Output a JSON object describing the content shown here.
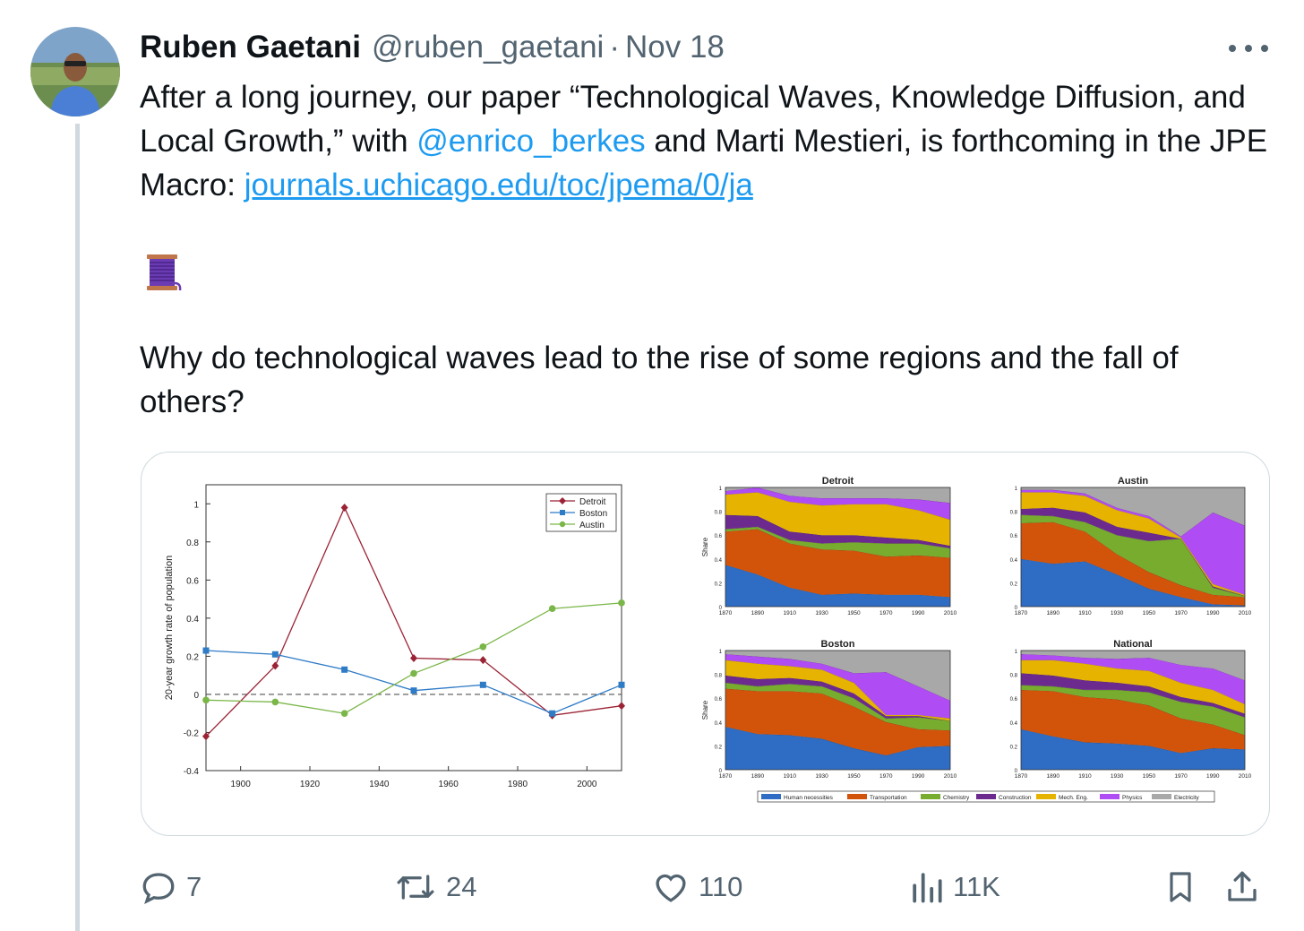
{
  "tweet": {
    "author_name": "Ruben Gaetani",
    "handle": "@ruben_gaetani",
    "separator": "·",
    "date": "Nov 18",
    "text_part1": "After a long journey, our paper “Technological Waves, Knowledge Diffusion, and Local Growth,” with ",
    "mention": "@enrico_berkes",
    "text_part2": " and Marti Mestieri, is forthcoming in the JPE Macro: ",
    "link": "journals.uchicago.edu/toc/jpema/0/ja",
    "emoji": "thread-spool",
    "text_para2": "Why do technological waves lead to the rise of some regions and the fall of others?"
  },
  "actions": {
    "replies": "7",
    "retweets": "24",
    "likes": "110",
    "views": "11K"
  },
  "icons": [
    "more-icon",
    "reply-icon",
    "retweet-icon",
    "like-icon",
    "views-icon",
    "bookmark-icon",
    "share-icon"
  ],
  "colors": {
    "text": "#0f1419",
    "secondary": "#536471",
    "link": "#1d9bf0",
    "detroit": "#9b2335",
    "boston": "#2e7bc6",
    "austin": "#7ab648"
  },
  "chart_data": [
    {
      "type": "line",
      "ylabel": "20-year growth rate of population",
      "xlabel": "",
      "x": [
        1890,
        1910,
        1930,
        1950,
        1970,
        1990,
        2010
      ],
      "xticks": [
        1900,
        1920,
        1940,
        1960,
        1980,
        2000
      ],
      "xlim": [
        1890,
        2010
      ],
      "ylim": [
        -0.4,
        1.1
      ],
      "yticks": [
        -0.4,
        -0.2,
        0,
        0.2,
        0.4,
        0.6,
        0.8,
        1
      ],
      "series": [
        {
          "name": "Detroit",
          "color": "#9b2335",
          "marker": "diamond",
          "values": [
            -0.22,
            0.15,
            0.98,
            0.19,
            0.18,
            -0.11,
            -0.06
          ]
        },
        {
          "name": "Boston",
          "color": "#2e7bc6",
          "marker": "square",
          "values": [
            0.23,
            0.21,
            0.13,
            0.02,
            0.05,
            -0.1,
            0.05
          ]
        },
        {
          "name": "Austin",
          "color": "#7ab648",
          "marker": "circle",
          "values": [
            -0.03,
            -0.04,
            -0.1,
            0.11,
            0.25,
            0.45,
            0.48
          ]
        }
      ],
      "legend": "top-right",
      "reference_line": 0
    },
    {
      "type": "area",
      "stacked": true,
      "ylabel": "Share",
      "x": [
        1870,
        1890,
        1910,
        1930,
        1950,
        1970,
        1990,
        2010
      ],
      "xticks": [
        1870,
        1890,
        1910,
        1930,
        1950,
        1970,
        1990,
        2010
      ],
      "yticks": [
        0,
        0.2,
        0.4,
        0.6,
        0.8,
        1
      ],
      "ylim": [
        0,
        1
      ],
      "categories": [
        "Human necessities",
        "Transportation",
        "Chemistry",
        "Construction",
        "Mech. Eng.",
        "Physics",
        "Electricity"
      ],
      "category_colors": [
        "#2f6cc4",
        "#d2540b",
        "#77ac2f",
        "#6d2a8e",
        "#e6b400",
        "#b04cf3",
        "#a8a8a8"
      ],
      "panels": [
        {
          "title": "Detroit",
          "series": [
            [
              0.35,
              0.27,
              0.16,
              0.1,
              0.11,
              0.1,
              0.1,
              0.08
            ],
            [
              0.28,
              0.38,
              0.37,
              0.38,
              0.36,
              0.32,
              0.33,
              0.33
            ],
            [
              0.02,
              0.02,
              0.03,
              0.05,
              0.07,
              0.11,
              0.1,
              0.08
            ],
            [
              0.12,
              0.09,
              0.07,
              0.07,
              0.06,
              0.05,
              0.03,
              0.02
            ],
            [
              0.17,
              0.2,
              0.25,
              0.25,
              0.26,
              0.28,
              0.25,
              0.22
            ],
            [
              0.03,
              0.04,
              0.05,
              0.06,
              0.05,
              0.05,
              0.09,
              0.14
            ],
            [
              0.03,
              0.0,
              0.07,
              0.09,
              0.09,
              0.09,
              0.1,
              0.13
            ]
          ]
        },
        {
          "title": "Austin",
          "series": [
            [
              0.4,
              0.36,
              0.38,
              0.27,
              0.15,
              0.08,
              0.02,
              0.01
            ],
            [
              0.3,
              0.35,
              0.25,
              0.17,
              0.14,
              0.1,
              0.08,
              0.07
            ],
            [
              0.07,
              0.05,
              0.08,
              0.16,
              0.26,
              0.39,
              0.06,
              0.01
            ],
            [
              0.05,
              0.07,
              0.08,
              0.07,
              0.07,
              0.0,
              0.01,
              0.0
            ],
            [
              0.14,
              0.13,
              0.14,
              0.14,
              0.12,
              0.01,
              0.02,
              0.01
            ],
            [
              0.02,
              0.02,
              0.02,
              0.02,
              0.02,
              0.01,
              0.6,
              0.58
            ],
            [
              0.02,
              0.02,
              0.05,
              0.17,
              0.24,
              0.41,
              0.21,
              0.32
            ]
          ]
        },
        {
          "title": "Boston",
          "series": [
            [
              0.36,
              0.3,
              0.29,
              0.26,
              0.18,
              0.12,
              0.19,
              0.2
            ],
            [
              0.32,
              0.36,
              0.37,
              0.38,
              0.35,
              0.28,
              0.15,
              0.13
            ],
            [
              0.05,
              0.04,
              0.06,
              0.06,
              0.07,
              0.03,
              0.1,
              0.08
            ],
            [
              0.06,
              0.06,
              0.05,
              0.04,
              0.04,
              0.02,
              0.01,
              0.0
            ],
            [
              0.13,
              0.13,
              0.1,
              0.1,
              0.09,
              0.01,
              0.01,
              0.02
            ],
            [
              0.05,
              0.06,
              0.06,
              0.05,
              0.08,
              0.36,
              0.24,
              0.15
            ],
            [
              0.03,
              0.05,
              0.07,
              0.11,
              0.19,
              0.18,
              0.3,
              0.42
            ]
          ]
        },
        {
          "title": "National",
          "series": [
            [
              0.34,
              0.28,
              0.23,
              0.22,
              0.2,
              0.14,
              0.18,
              0.17
            ],
            [
              0.33,
              0.38,
              0.38,
              0.37,
              0.34,
              0.29,
              0.2,
              0.12
            ],
            [
              0.04,
              0.04,
              0.06,
              0.08,
              0.11,
              0.14,
              0.15,
              0.15
            ],
            [
              0.1,
              0.09,
              0.08,
              0.06,
              0.05,
              0.04,
              0.03,
              0.03
            ],
            [
              0.11,
              0.13,
              0.14,
              0.12,
              0.13,
              0.12,
              0.11,
              0.08
            ],
            [
              0.05,
              0.04,
              0.05,
              0.08,
              0.11,
              0.15,
              0.18,
              0.2
            ],
            [
              0.03,
              0.04,
              0.06,
              0.07,
              0.06,
              0.12,
              0.15,
              0.25
            ]
          ]
        }
      ],
      "legend": "bottom"
    }
  ]
}
